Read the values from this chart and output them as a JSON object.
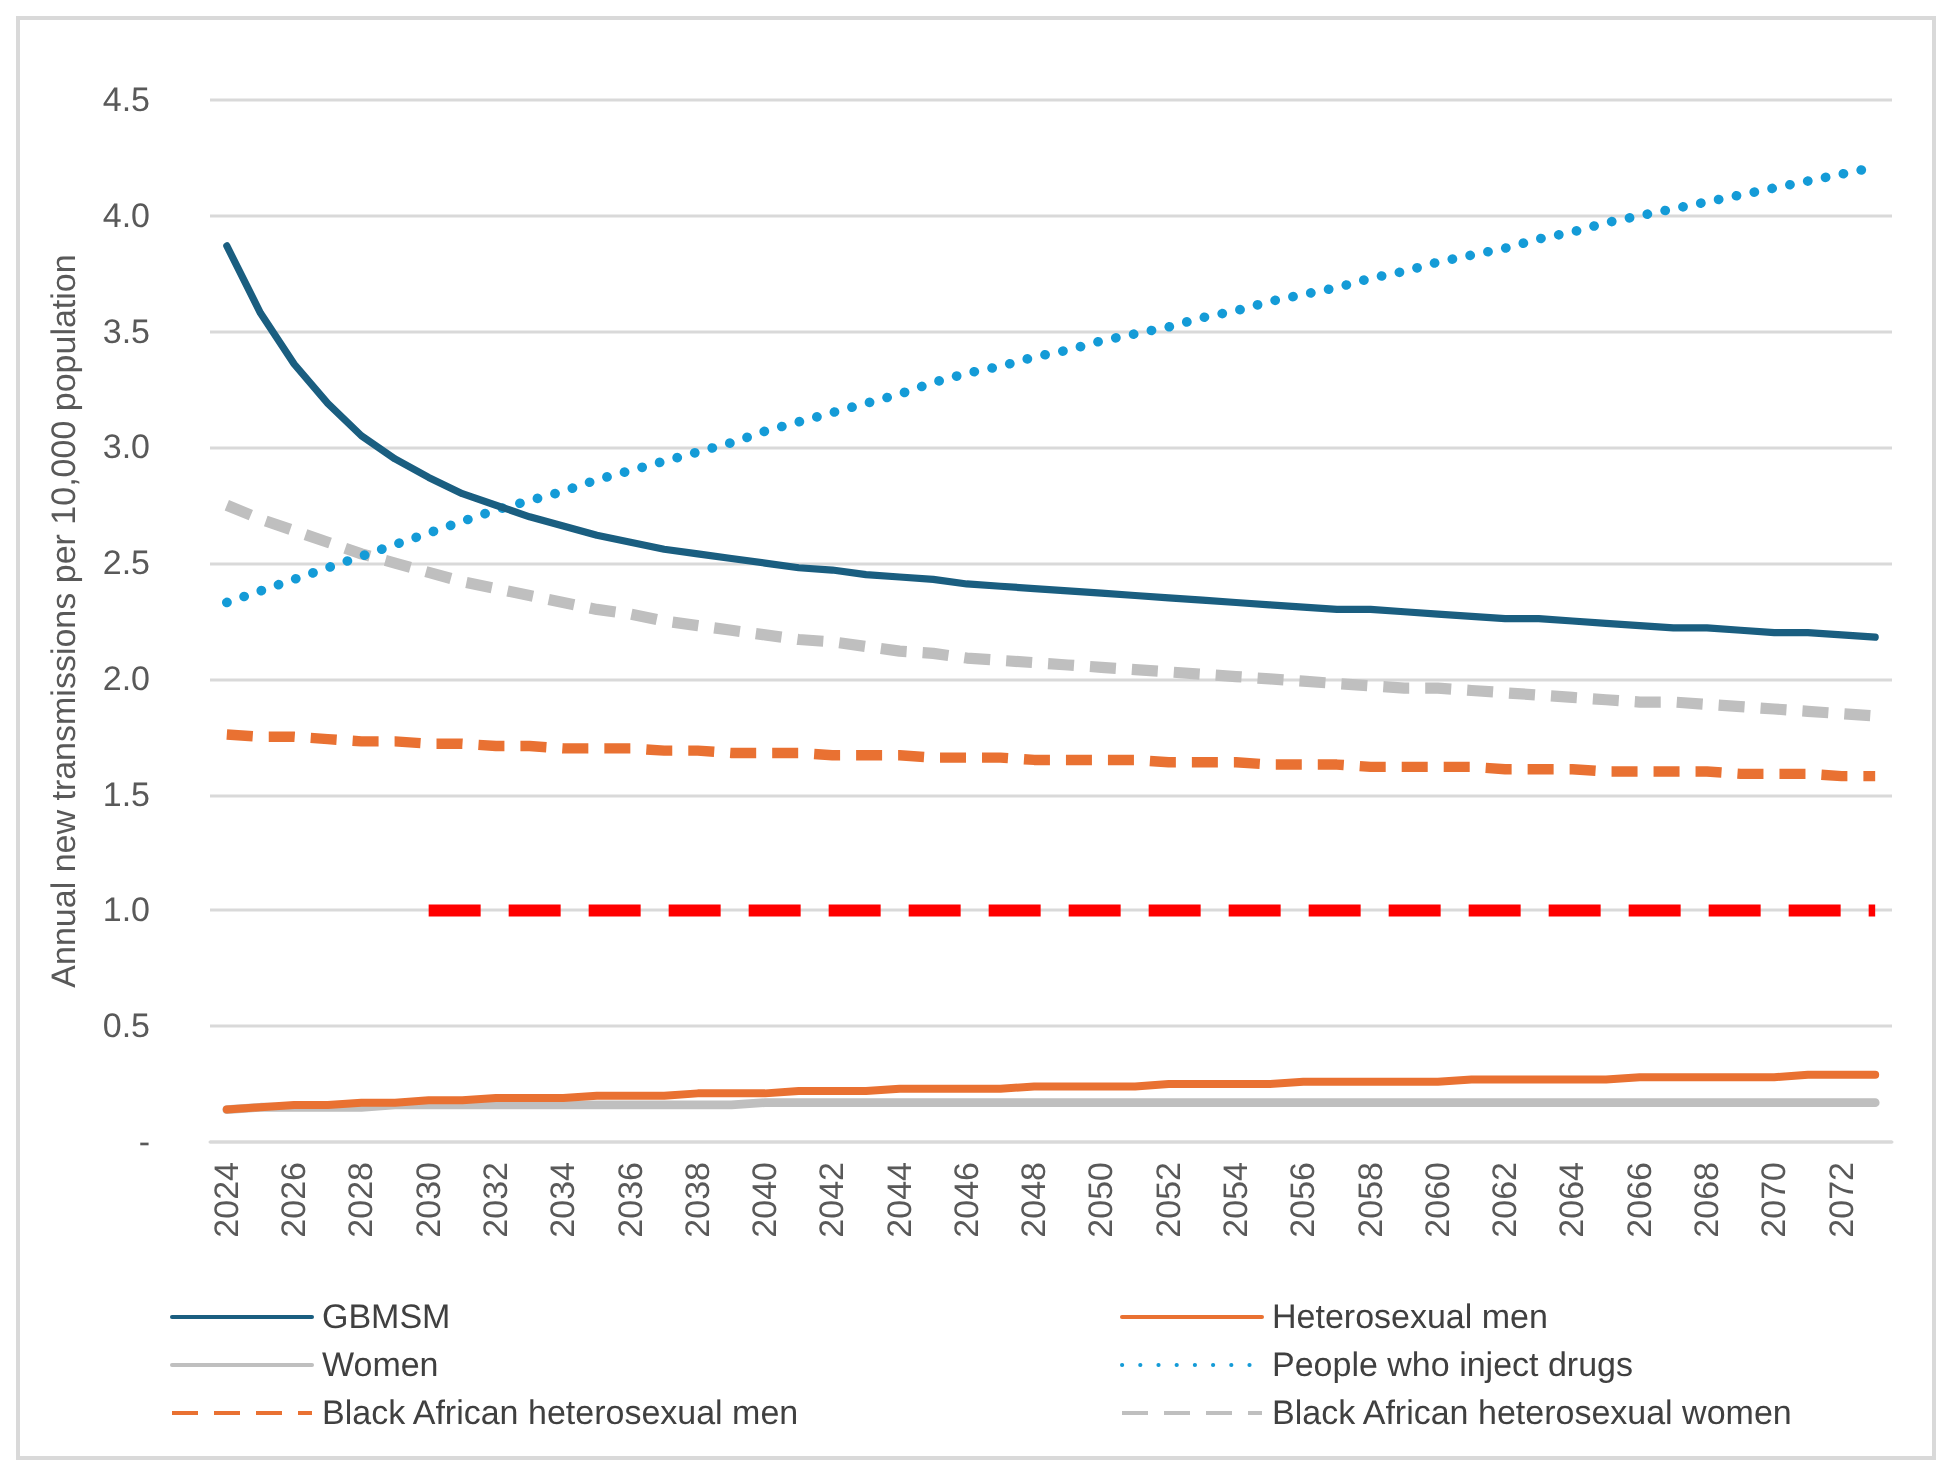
{
  "chart_data": {
    "type": "line",
    "ylabel": "Annual new transmissions per 10,000 population",
    "categories": [
      "2024",
      null,
      "2026",
      null,
      "2028",
      null,
      "2030",
      null,
      "2032",
      null,
      "2034",
      null,
      "2036",
      null,
      "2038",
      null,
      "2040",
      null,
      "2042",
      null,
      "2044",
      null,
      "2046",
      null,
      "2048",
      null,
      "2050",
      null,
      "2052",
      null,
      "2054",
      null,
      "2056",
      null,
      "2058",
      null,
      "2060",
      null,
      "2062",
      null,
      "2064",
      null,
      "2066",
      null,
      "2068",
      null,
      "2070",
      null,
      "2072",
      null
    ],
    "ylim": [
      0,
      4.5
    ],
    "yticks": [
      {
        "value": 0,
        "label": "-"
      },
      0.5,
      {
        "value": 1,
        "label": "1.0"
      },
      1.5,
      {
        "value": 2,
        "label": "2.0"
      },
      2.5,
      {
        "value": 3,
        "label": "3.0"
      },
      3.5,
      {
        "value": 4,
        "label": "4.0"
      },
      4.5
    ],
    "grid": "y",
    "legend": "bottom",
    "marker": "none",
    "series": [
      {
        "name": "GBMSM",
        "color": "#1a5e80",
        "line_style": "solid",
        "values": [
          3.87,
          3.58,
          3.36,
          3.19,
          3.05,
          2.95,
          2.87,
          2.8,
          2.75,
          2.7,
          2.66,
          2.62,
          2.59,
          2.56,
          2.54,
          2.52,
          2.5,
          2.48,
          2.47,
          2.45,
          2.44,
          2.43,
          2.41,
          2.4,
          2.39,
          2.38,
          2.37,
          2.36,
          2.35,
          2.34,
          2.33,
          2.32,
          2.31,
          2.3,
          2.3,
          2.29,
          2.28,
          2.27,
          2.26,
          2.26,
          2.25,
          2.24,
          2.23,
          2.22,
          2.22,
          2.21,
          2.2,
          2.2,
          2.19,
          2.18
        ]
      },
      {
        "name": "Heterosexual men",
        "color": "#e97132",
        "line_style": "solid",
        "values": [
          0.14,
          0.15,
          0.16,
          0.16,
          0.17,
          0.17,
          0.18,
          0.18,
          0.19,
          0.19,
          0.19,
          0.2,
          0.2,
          0.2,
          0.21,
          0.21,
          0.21,
          0.22,
          0.22,
          0.22,
          0.23,
          0.23,
          0.23,
          0.23,
          0.24,
          0.24,
          0.24,
          0.24,
          0.25,
          0.25,
          0.25,
          0.25,
          0.26,
          0.26,
          0.26,
          0.26,
          0.26,
          0.27,
          0.27,
          0.27,
          0.27,
          0.27,
          0.28,
          0.28,
          0.28,
          0.28,
          0.28,
          0.29,
          0.29,
          0.29
        ]
      },
      {
        "name": "Women",
        "color": "#bfbfbf",
        "line_style": "solid",
        "values": [
          0.14,
          0.15,
          0.15,
          0.15,
          0.15,
          0.16,
          0.16,
          0.16,
          0.16,
          0.16,
          0.16,
          0.16,
          0.16,
          0.16,
          0.16,
          0.16,
          0.17,
          0.17,
          0.17,
          0.17,
          0.17,
          0.17,
          0.17,
          0.17,
          0.17,
          0.17,
          0.17,
          0.17,
          0.17,
          0.17,
          0.17,
          0.17,
          0.17,
          0.17,
          0.17,
          0.17,
          0.17,
          0.17,
          0.17,
          0.17,
          0.17,
          0.17,
          0.17,
          0.17,
          0.17,
          0.17,
          0.17,
          0.17,
          0.17,
          0.17
        ]
      },
      {
        "name": "People who inject drugs",
        "color": "#149bd7",
        "line_style": "dotted",
        "values": [
          2.33,
          2.38,
          2.43,
          2.48,
          2.53,
          2.58,
          2.63,
          2.68,
          2.73,
          2.77,
          2.81,
          2.86,
          2.9,
          2.94,
          2.98,
          3.02,
          3.07,
          3.11,
          3.15,
          3.19,
          3.23,
          3.28,
          3.32,
          3.35,
          3.39,
          3.42,
          3.46,
          3.49,
          3.52,
          3.56,
          3.59,
          3.63,
          3.66,
          3.69,
          3.73,
          3.76,
          3.8,
          3.83,
          3.86,
          3.9,
          3.93,
          3.97,
          4.0,
          4.03,
          4.06,
          4.09,
          4.12,
          4.15,
          4.18,
          4.21
        ]
      },
      {
        "name": "Black African heterosexual men",
        "color": "#e97132",
        "line_style": "dashed",
        "values": [
          1.76,
          1.75,
          1.75,
          1.74,
          1.73,
          1.73,
          1.72,
          1.72,
          1.71,
          1.71,
          1.7,
          1.7,
          1.7,
          1.69,
          1.69,
          1.68,
          1.68,
          1.68,
          1.67,
          1.67,
          1.67,
          1.66,
          1.66,
          1.66,
          1.65,
          1.65,
          1.65,
          1.65,
          1.64,
          1.64,
          1.64,
          1.63,
          1.63,
          1.63,
          1.62,
          1.62,
          1.62,
          1.62,
          1.61,
          1.61,
          1.61,
          1.6,
          1.6,
          1.6,
          1.6,
          1.59,
          1.59,
          1.59,
          1.58,
          1.58
        ]
      },
      {
        "name": "Black African heterosexual women",
        "color": "#bfbfbf",
        "line_style": "dashed",
        "values": [
          2.75,
          2.69,
          2.64,
          2.59,
          2.54,
          2.5,
          2.46,
          2.42,
          2.39,
          2.36,
          2.33,
          2.3,
          2.28,
          2.25,
          2.23,
          2.21,
          2.19,
          2.17,
          2.16,
          2.14,
          2.12,
          2.11,
          2.09,
          2.08,
          2.07,
          2.06,
          2.05,
          2.04,
          2.03,
          2.02,
          2.01,
          2.0,
          1.99,
          1.98,
          1.97,
          1.96,
          1.96,
          1.95,
          1.94,
          1.93,
          1.92,
          1.91,
          1.9,
          1.9,
          1.89,
          1.88,
          1.87,
          1.86,
          1.85,
          1.84
        ]
      },
      {
        "color": "#ff0000",
        "line_style": "dashed",
        "values": [
          null,
          null,
          null,
          null,
          null,
          null,
          1,
          1,
          1,
          1,
          1,
          1,
          1,
          1,
          1,
          1,
          1,
          1,
          1,
          1,
          1,
          1,
          1,
          1,
          1,
          1,
          1,
          1,
          1,
          1,
          1,
          1,
          1,
          1,
          1,
          1,
          1,
          1,
          1,
          1,
          1,
          1,
          1,
          1,
          1,
          1,
          1,
          1,
          1,
          1
        ]
      }
    ]
  }
}
